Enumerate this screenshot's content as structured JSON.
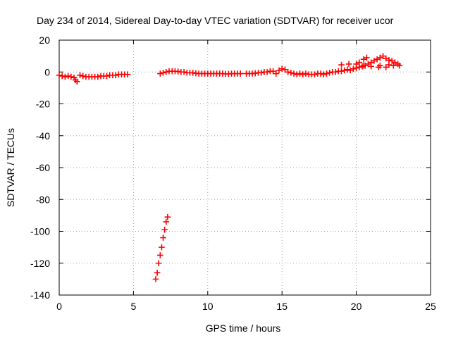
{
  "chart_data": {
    "type": "scatter",
    "title": "Day 234 of 2014, Sidereal Day-to-day VTEC variation (SDTVAR) for receiver ucor",
    "xlabel": "GPS time / hours",
    "ylabel": "SDTVAR / TECUs",
    "xlim": [
      0,
      25
    ],
    "ylim": [
      -140,
      20
    ],
    "xticks": [
      0,
      5,
      10,
      15,
      20,
      25
    ],
    "xtick_labels": [
      "0",
      "5",
      "10",
      "15",
      "20",
      "25"
    ],
    "yticks": [
      20,
      0,
      -20,
      -40,
      -60,
      -80,
      -100,
      -120,
      -140
    ],
    "ytick_labels": [
      "20",
      "0",
      "-20",
      "-40",
      "-60",
      "-80",
      "-100",
      "-120",
      "-140"
    ],
    "grid": true,
    "marker": "plus",
    "color": "#ff0000",
    "series": [
      {
        "points": [
          [
            0.0,
            -2.0
          ],
          [
            0.2,
            -2.5
          ],
          [
            0.4,
            -3.0
          ],
          [
            0.6,
            -2.5
          ],
          [
            0.8,
            -3.0
          ],
          [
            1.0,
            -3.5
          ],
          [
            1.1,
            -5.0
          ],
          [
            1.2,
            -6.0
          ],
          [
            1.4,
            -2.0
          ],
          [
            1.6,
            -2.5
          ],
          [
            1.8,
            -3.0
          ],
          [
            2.0,
            -3.0
          ],
          [
            2.2,
            -3.0
          ],
          [
            2.4,
            -3.0
          ],
          [
            2.6,
            -3.0
          ],
          [
            2.8,
            -2.5
          ],
          [
            3.0,
            -2.5
          ],
          [
            3.2,
            -2.5
          ],
          [
            3.4,
            -2.0
          ],
          [
            3.6,
            -2.0
          ],
          [
            3.8,
            -2.0
          ],
          [
            4.0,
            -1.5
          ],
          [
            4.2,
            -1.5
          ],
          [
            4.4,
            -1.5
          ],
          [
            4.6,
            -1.5
          ],
          [
            6.5,
            -130.0
          ],
          [
            6.6,
            -126.0
          ],
          [
            6.7,
            -120.0
          ],
          [
            6.8,
            -115.0
          ],
          [
            6.9,
            -110.0
          ],
          [
            7.0,
            -104.0
          ],
          [
            7.1,
            -99.0
          ],
          [
            7.2,
            -94.0
          ],
          [
            7.3,
            -91.0
          ],
          [
            6.8,
            -1.0
          ],
          [
            7.0,
            -0.5
          ],
          [
            7.2,
            0.0
          ],
          [
            7.4,
            0.5
          ],
          [
            7.6,
            0.5
          ],
          [
            7.8,
            0.5
          ],
          [
            8.0,
            0.3
          ],
          [
            8.2,
            0.0
          ],
          [
            8.4,
            0.0
          ],
          [
            8.6,
            -0.5
          ],
          [
            8.8,
            -0.5
          ],
          [
            9.0,
            -0.5
          ],
          [
            9.2,
            -0.8
          ],
          [
            9.4,
            -1.0
          ],
          [
            9.6,
            -1.0
          ],
          [
            9.8,
            -1.0
          ],
          [
            10.0,
            -1.0
          ],
          [
            10.2,
            -1.0
          ],
          [
            10.4,
            -1.0
          ],
          [
            10.6,
            -1.0
          ],
          [
            10.8,
            -1.0
          ],
          [
            11.0,
            -1.0
          ],
          [
            11.2,
            -1.2
          ],
          [
            11.4,
            -1.2
          ],
          [
            11.6,
            -1.0
          ],
          [
            11.8,
            -1.0
          ],
          [
            12.0,
            -1.0
          ],
          [
            12.2,
            -1.0
          ],
          [
            12.6,
            -1.0
          ],
          [
            12.8,
            -1.0
          ],
          [
            13.0,
            -1.0
          ],
          [
            13.2,
            -0.8
          ],
          [
            13.4,
            -0.5
          ],
          [
            13.6,
            -0.5
          ],
          [
            13.8,
            0.0
          ],
          [
            14.0,
            0.0
          ],
          [
            14.2,
            0.5
          ],
          [
            14.4,
            0.5
          ],
          [
            14.6,
            -1.0
          ],
          [
            14.8,
            1.0
          ],
          [
            15.0,
            2.0
          ],
          [
            15.2,
            1.5
          ],
          [
            15.4,
            0.0
          ],
          [
            15.6,
            -0.5
          ],
          [
            15.8,
            -1.0
          ],
          [
            16.0,
            -1.5
          ],
          [
            16.2,
            -1.0
          ],
          [
            16.4,
            -1.5
          ],
          [
            16.6,
            -1.0
          ],
          [
            16.8,
            -1.5
          ],
          [
            17.0,
            -1.5
          ],
          [
            17.2,
            -1.5
          ],
          [
            17.4,
            -1.0
          ],
          [
            17.6,
            -1.0
          ],
          [
            17.8,
            -1.5
          ],
          [
            18.0,
            -1.0
          ],
          [
            18.2,
            -0.5
          ],
          [
            18.4,
            0.0
          ],
          [
            18.6,
            0.0
          ],
          [
            18.8,
            0.5
          ],
          [
            19.0,
            0.5
          ],
          [
            19.2,
            1.0
          ],
          [
            19.4,
            1.5
          ],
          [
            19.6,
            1.0
          ],
          [
            19.8,
            2.0
          ],
          [
            20.0,
            2.5
          ],
          [
            20.2,
            3.0
          ],
          [
            20.4,
            3.5
          ],
          [
            20.6,
            4.0
          ],
          [
            20.8,
            5.0
          ],
          [
            21.0,
            6.0
          ],
          [
            21.2,
            7.0
          ],
          [
            21.4,
            8.0
          ],
          [
            21.6,
            9.0
          ],
          [
            21.8,
            10.0
          ],
          [
            22.0,
            8.5
          ],
          [
            22.2,
            7.5
          ],
          [
            22.4,
            7.0
          ],
          [
            22.6,
            6.0
          ],
          [
            22.8,
            5.0
          ],
          [
            19.0,
            4.5
          ],
          [
            19.5,
            5.0
          ],
          [
            20.0,
            5.0
          ],
          [
            20.5,
            4.0
          ],
          [
            21.0,
            3.5
          ],
          [
            21.5,
            3.0
          ],
          [
            22.0,
            3.0
          ],
          [
            22.5,
            4.0
          ],
          [
            22.9,
            4.0
          ],
          [
            20.2,
            6.0
          ],
          [
            20.5,
            8.0
          ],
          [
            20.7,
            9.0
          ],
          [
            21.6,
            4.0
          ],
          [
            22.2,
            4.5
          ]
        ]
      }
    ]
  }
}
